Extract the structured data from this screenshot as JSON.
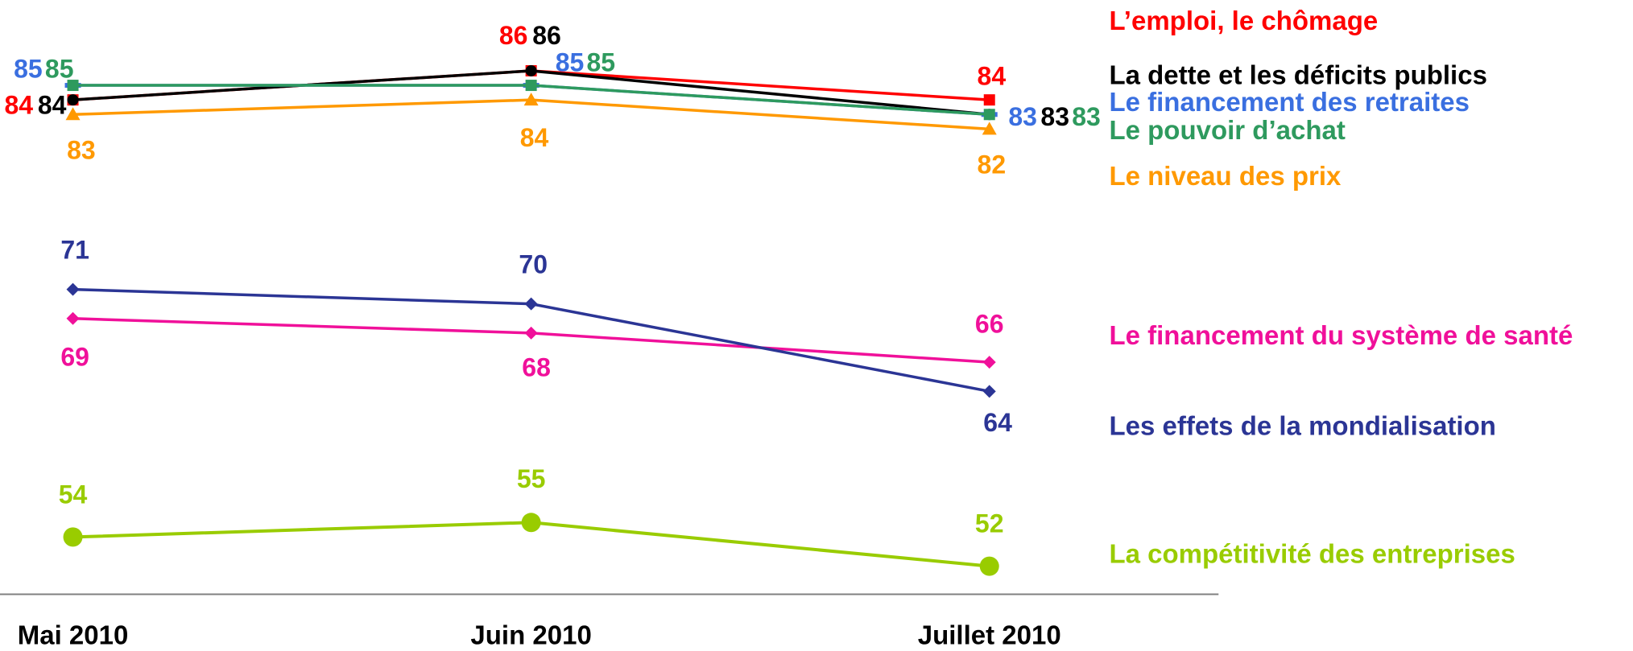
{
  "chart_data": {
    "type": "line",
    "categories": [
      "Mai 2010",
      "Juin 2010",
      "Juillet 2010"
    ],
    "ylim": [
      50,
      91
    ],
    "series": [
      {
        "name": "L’emploi, le chômage",
        "color": "#ff0000",
        "values": [
          84,
          86,
          84
        ]
      },
      {
        "name": "La dette et les déficits publics",
        "color": "#000000",
        "values": [
          84,
          86,
          83
        ]
      },
      {
        "name": "Le financement des retraites",
        "color": "#3a6fe0",
        "values": [
          85,
          85,
          83
        ]
      },
      {
        "name": "Le pouvoir d’achat",
        "color": "#2e9a5e",
        "values": [
          85,
          85,
          83
        ]
      },
      {
        "name": "Le niveau des prix",
        "color": "#ff9900",
        "values": [
          83,
          84,
          82
        ]
      },
      {
        "name": "Le financement du système de santé",
        "color": "#f0109a",
        "values": [
          69,
          68,
          66
        ]
      },
      {
        "name": "Les effets de la mondialisation",
        "color": "#2b3595",
        "values": [
          71,
          70,
          64
        ]
      },
      {
        "name": "La compétitivité des entreprises",
        "color": "#99cc00",
        "values": [
          54,
          55,
          52
        ]
      }
    ]
  }
}
